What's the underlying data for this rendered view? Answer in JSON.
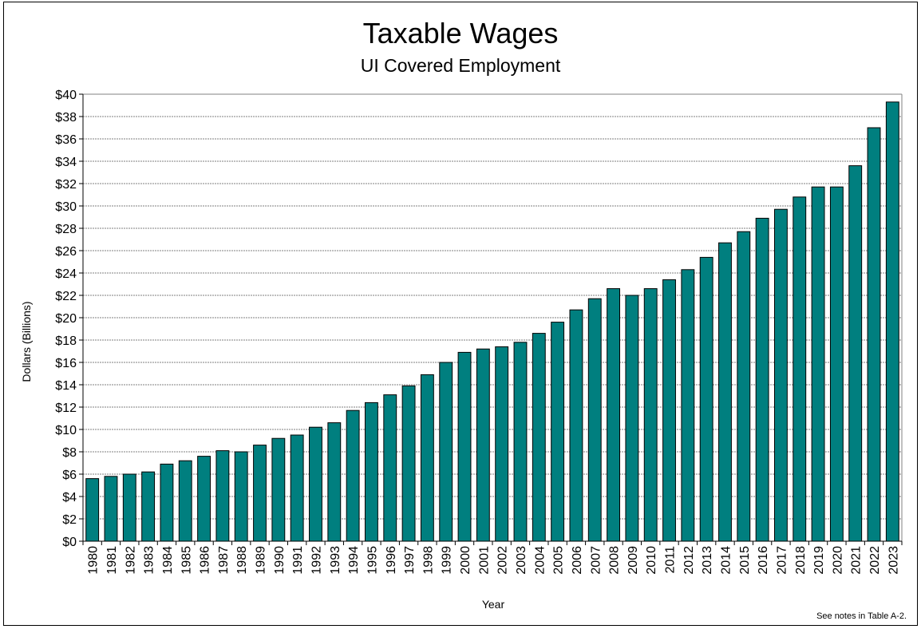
{
  "chart_data": {
    "type": "bar",
    "title": "Taxable Wages",
    "subtitle": "UI Covered Employment",
    "xlabel": "Year",
    "ylabel": "Dollars (Billions)",
    "note": "See notes in Table A-2.",
    "ylim": [
      0,
      40
    ],
    "y_ticks": [
      "$0",
      "$2",
      "$4",
      "$6",
      "$8",
      "$10",
      "$12",
      "$14",
      "$16",
      "$18",
      "$20",
      "$22",
      "$24",
      "$26",
      "$28",
      "$30",
      "$32",
      "$34",
      "$36",
      "$38",
      "$40"
    ],
    "grid": true,
    "legend": "none",
    "bar_color": "#007f7f",
    "categories": [
      "1980",
      "1981",
      "1982",
      "1983",
      "1984",
      "1985",
      "1986",
      "1987",
      "1988",
      "1989",
      "1990",
      "1991",
      "1992",
      "1993",
      "1994",
      "1995",
      "1996",
      "1997",
      "1998",
      "1999",
      "2000",
      "2001",
      "2002",
      "2003",
      "2004",
      "2005",
      "2006",
      "2007",
      "2008",
      "2009",
      "2010",
      "2011",
      "2012",
      "2013",
      "2014",
      "2015",
      "2016",
      "2017",
      "2018",
      "2019",
      "2020",
      "2021",
      "2022",
      "2023"
    ],
    "values": [
      5.6,
      5.8,
      6.0,
      6.2,
      6.9,
      7.2,
      7.6,
      8.1,
      8.0,
      8.6,
      9.2,
      9.5,
      10.2,
      10.6,
      11.7,
      12.4,
      13.1,
      13.9,
      14.9,
      16.0,
      16.9,
      17.2,
      17.4,
      17.8,
      18.6,
      19.6,
      20.7,
      21.7,
      22.6,
      22.0,
      22.6,
      23.4,
      24.3,
      25.4,
      26.7,
      27.7,
      28.9,
      29.7,
      30.8,
      31.7,
      31.7,
      33.6,
      37.0,
      39.3
    ]
  }
}
